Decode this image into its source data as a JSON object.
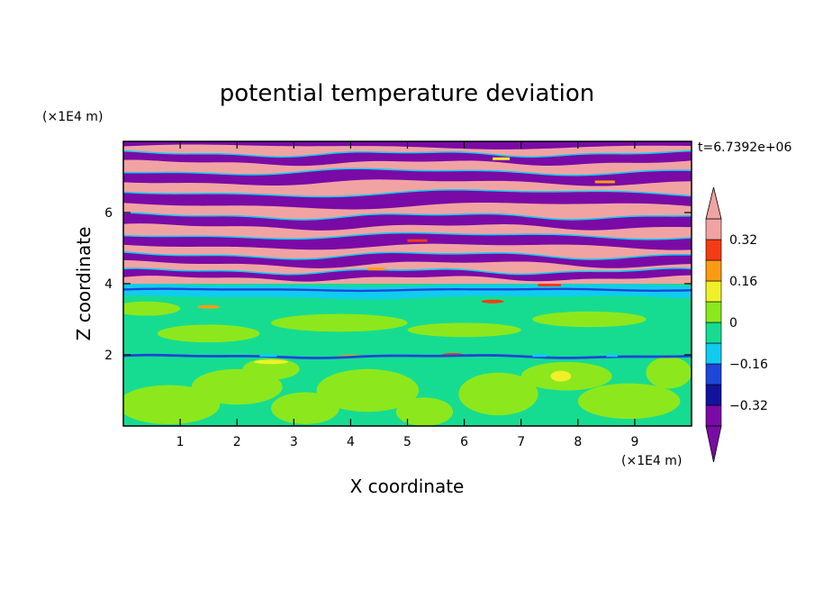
{
  "chart_data": {
    "type": "heatmap",
    "title": "potential temperature deviation",
    "xlabel": "X coordinate",
    "ylabel": "Z coordinate",
    "x_unit": "(×1E4 m)",
    "y_unit": "(×1E4 m)",
    "time_label": "t=6.7392e+06",
    "xlim": [
      0,
      10
    ],
    "ylim": [
      0,
      8
    ],
    "x_ticks": [
      "1",
      "2",
      "3",
      "4",
      "5",
      "6",
      "7",
      "8",
      "9"
    ],
    "y_ticks": [
      "2",
      "4",
      "6"
    ],
    "colorbar": {
      "tick_labels": [
        "0.32",
        "0.16",
        "0",
        "−0.16",
        "−0.32"
      ],
      "tick_values": [
        0.32,
        0.16,
        0,
        -0.16,
        -0.32
      ],
      "levels": [
        -0.48,
        -0.4,
        -0.32,
        -0.24,
        -0.16,
        -0.08,
        0,
        0.08,
        0.16,
        0.24,
        0.32,
        0.4,
        0.48
      ],
      "colors": [
        "#7a0aa6",
        "#12129c",
        "#1e46d8",
        "#11cbf0",
        "#16dc92",
        "#8ce81c",
        "#f0f02a",
        "#fb9b14",
        "#f43c14",
        "#f1a3a3"
      ],
      "over_color": "#f1a3a3",
      "under_color": "#7a0aa6"
    },
    "regions": [
      {
        "z_range": [
          0,
          1.9
        ],
        "pattern": "mixed near-zero values",
        "colors": [
          "#16dc92",
          "#8ce81c"
        ]
      },
      {
        "z_range": [
          1.9,
          2.0
        ],
        "pattern": "thin negative/positive interface",
        "colors": [
          "#1e46d8",
          "#f43c14"
        ]
      },
      {
        "z_range": [
          2.0,
          3.6
        ],
        "pattern": "near-zero with light positive streaks",
        "colors": [
          "#16dc92",
          "#8ce81c"
        ]
      },
      {
        "z_range": [
          3.6,
          4.0
        ],
        "pattern": "slightly negative layer",
        "colors": [
          "#11cbf0",
          "#1e46d8"
        ]
      },
      {
        "z_range": [
          4.0,
          8.0
        ],
        "pattern": "alternating saturated layers",
        "colors": [
          "#f1a3a3",
          "#7a0aa6"
        ]
      }
    ]
  }
}
